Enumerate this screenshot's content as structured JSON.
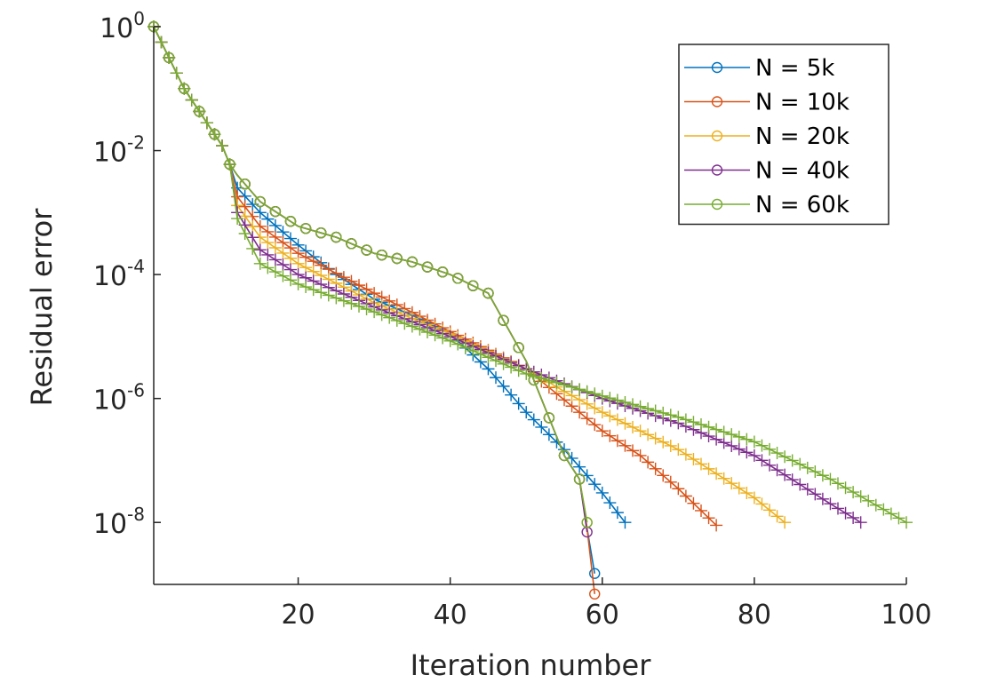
{
  "chart_data": {
    "type": "line",
    "xlabel": "Iteration number",
    "ylabel": "Residual error",
    "xlim": [
      1,
      100
    ],
    "ylim": [
      1e-09,
      1
    ],
    "yscale": "log",
    "xticks": [
      20,
      40,
      60,
      80,
      100
    ],
    "yticks": [
      {
        "base": "10",
        "exp": "0",
        "value": 1
      },
      {
        "base": "10",
        "exp": "-2",
        "value": 0.01
      },
      {
        "base": "10",
        "exp": "-4",
        "value": 0.0001
      },
      {
        "base": "10",
        "exp": "-6",
        "value": 1e-06
      },
      {
        "base": "10",
        "exp": "-8",
        "value": 1e-08
      }
    ],
    "grid": false,
    "legend_position": "top-right",
    "series": [
      {
        "name": "N = 5k",
        "color": "#0072BD",
        "markers": "circle-on-first-series-plus-on-second",
        "a": {
          "x": [
            1,
            5,
            10,
            11,
            12,
            15,
            20,
            25,
            30,
            35,
            40,
            45,
            50,
            55,
            57,
            58,
            59
          ],
          "y": [
            1,
            0.1,
            0.012,
            0.006,
            0.004,
            0.0015,
            0.0006,
            0.0004,
            0.00022,
            0.00016,
            0.0001,
            5e-05,
            4e-06,
            1.2e-07,
            5e-08,
            8e-09,
            1.5e-09
          ]
        },
        "b": {
          "x": [
            1,
            5,
            10,
            11,
            12,
            15,
            20,
            25,
            30,
            35,
            40,
            45,
            50,
            55,
            60,
            63
          ],
          "y": [
            1,
            0.1,
            0.012,
            0.006,
            0.0025,
            0.001,
            0.0003,
            0.0001,
            4e-05,
            2.2e-05,
            1.1e-05,
            3e-06,
            6e-07,
            1.5e-07,
            3e-08,
            1e-08
          ]
        }
      },
      {
        "name": "N = 10k",
        "color": "#D95319",
        "markers": "circle-on-first-series-plus-on-second",
        "a": {
          "x": [
            1,
            5,
            10,
            11,
            12,
            15,
            20,
            25,
            30,
            35,
            40,
            45,
            50,
            55,
            57,
            58,
            59
          ],
          "y": [
            1,
            0.1,
            0.012,
            0.006,
            0.004,
            0.0015,
            0.0006,
            0.0004,
            0.00022,
            0.00016,
            0.0001,
            5e-05,
            4e-06,
            1.2e-07,
            5e-08,
            8e-09,
            7e-10
          ]
        },
        "b": {
          "x": [
            1,
            5,
            10,
            11,
            12,
            15,
            20,
            30,
            40,
            50,
            60,
            65,
            70,
            75
          ],
          "y": [
            1,
            0.1,
            0.012,
            0.006,
            0.0018,
            0.0006,
            0.00022,
            5e-05,
            1.2e-05,
            3e-06,
            3e-07,
            1.2e-07,
            3.5e-08,
            9e-09
          ]
        }
      },
      {
        "name": "N = 20k",
        "color": "#EDB120",
        "markers": "circle-on-first-series-plus-on-second",
        "a": {
          "x": [
            1,
            5,
            10,
            11,
            12,
            15,
            20,
            25,
            30,
            35,
            40,
            45,
            50,
            55,
            57,
            58
          ],
          "y": [
            1,
            0.1,
            0.012,
            0.006,
            0.004,
            0.0015,
            0.0006,
            0.0004,
            0.00022,
            0.00016,
            0.0001,
            5e-05,
            4e-06,
            1.2e-07,
            5e-08,
            1e-08
          ]
        },
        "b": {
          "x": [
            1,
            5,
            10,
            11,
            12,
            15,
            20,
            30,
            40,
            50,
            55,
            60,
            70,
            80,
            84
          ],
          "y": [
            1,
            0.1,
            0.012,
            0.006,
            0.0013,
            0.0004,
            0.00015,
            3.5e-05,
            1.1e-05,
            3e-06,
            1.3e-06,
            6e-07,
            1.5e-07,
            2.5e-08,
            1e-08
          ]
        }
      },
      {
        "name": "N = 40k",
        "color": "#7E2F8E",
        "markers": "circle-on-first-series-plus-on-second",
        "a": {
          "x": [
            1,
            5,
            10,
            11,
            12,
            15,
            20,
            25,
            30,
            35,
            40,
            45,
            50,
            55,
            57,
            58
          ],
          "y": [
            1,
            0.1,
            0.012,
            0.006,
            0.004,
            0.0015,
            0.0006,
            0.0004,
            0.00022,
            0.00016,
            0.0001,
            5e-05,
            4e-06,
            1.2e-07,
            5e-08,
            7e-09
          ]
        },
        "b": {
          "x": [
            1,
            5,
            10,
            11,
            12,
            15,
            20,
            30,
            40,
            50,
            60,
            70,
            80,
            90,
            94
          ],
          "y": [
            1,
            0.1,
            0.012,
            0.006,
            0.001,
            0.00025,
            0.0001,
            3e-05,
            1e-05,
            3e-06,
            1e-06,
            4e-07,
            1.2e-07,
            2e-08,
            1e-08
          ]
        }
      },
      {
        "name": "N = 60k",
        "color": "#77AC30",
        "markers": "circle-on-first-series-plus-on-second",
        "a": {
          "x": [
            1,
            5,
            10,
            11,
            12,
            15,
            20,
            25,
            30,
            35,
            40,
            45,
            50,
            55,
            57,
            58
          ],
          "y": [
            1,
            0.1,
            0.012,
            0.006,
            0.004,
            0.0015,
            0.0006,
            0.0004,
            0.00022,
            0.00016,
            0.0001,
            5e-05,
            4e-06,
            1.2e-07,
            5e-08,
            1e-08
          ]
        },
        "b": {
          "x": [
            1,
            5,
            10,
            11,
            12,
            15,
            20,
            30,
            40,
            50,
            60,
            70,
            80,
            90,
            100
          ],
          "y": [
            1,
            0.1,
            0.012,
            0.006,
            0.0008,
            0.00015,
            7e-05,
            2.5e-05,
            8.5e-06,
            2.5e-06,
            1.1e-06,
            5e-07,
            2e-07,
            5e-08,
            1e-08
          ]
        }
      }
    ]
  }
}
